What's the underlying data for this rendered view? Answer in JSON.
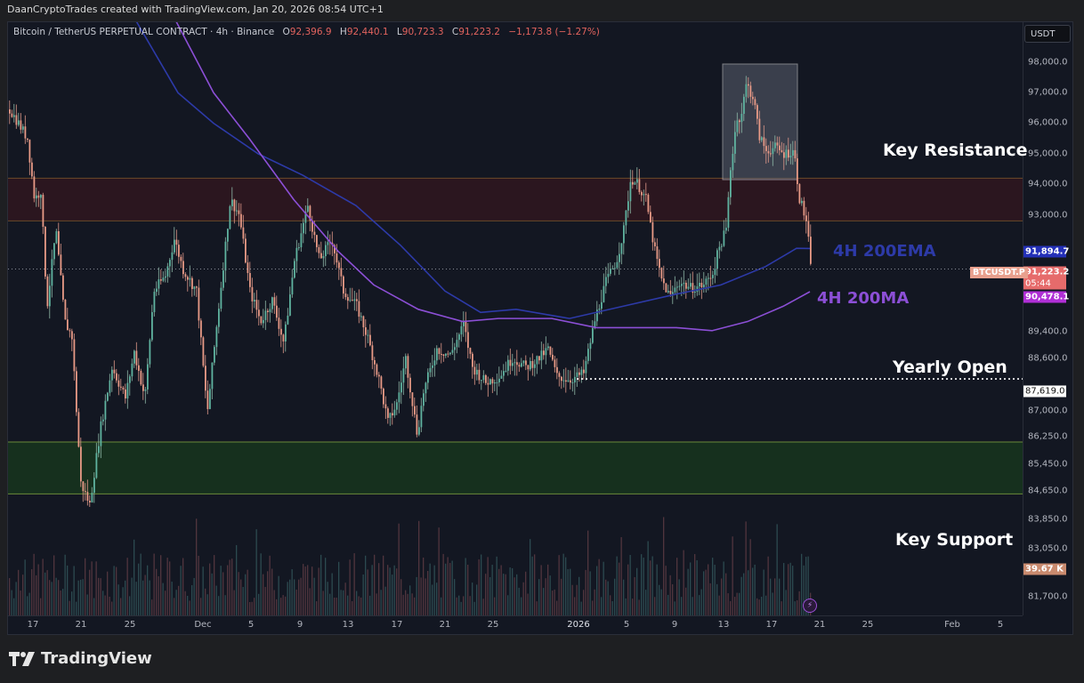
{
  "header": {
    "attribution": "DaanCryptoTrades created with TradingView.com, Jan 20, 2026 08:54 UTC+1"
  },
  "legend": {
    "symbol_desc": "Bitcoin / TetherUS PERPETUAL CONTRACT · 4h · Binance",
    "open_label": "O",
    "open": "92,396.9",
    "high_label": "H",
    "high": "92,440.1",
    "low_label": "L",
    "low": "90,723.3",
    "close_label": "C",
    "close": "91,223.2",
    "change": "−1,173.8 (−1.27%)"
  },
  "price_axis": {
    "currency": "USDT",
    "ticks": [
      "98,000.0",
      "97,000.0",
      "96,000.0",
      "95,000.0",
      "94,000.0",
      "93,000.0",
      "89,400.0",
      "88,600.0",
      "87,000.0",
      "86,250.0",
      "85,450.0",
      "84,650.0",
      "83,850.0",
      "83,050.0",
      "81,700.0"
    ]
  },
  "tags": {
    "ema": "91,894.7",
    "price": "91,223.2",
    "countdown": "05:44",
    "ma": "90,478.1",
    "yearly_open": "87,619.0",
    "volume": "39.67 K",
    "symbol": "BTCUSDT.P"
  },
  "time_axis": {
    "labels": [
      {
        "t": "17",
        "x": 37
      },
      {
        "t": "21",
        "x": 91
      },
      {
        "t": "25",
        "x": 146
      },
      {
        "t": "Dec",
        "x": 228
      },
      {
        "t": "5",
        "x": 282
      },
      {
        "t": "9",
        "x": 337
      },
      {
        "t": "13",
        "x": 391
      },
      {
        "t": "17",
        "x": 446
      },
      {
        "t": "21",
        "x": 500
      },
      {
        "t": "25",
        "x": 554
      },
      {
        "t": "2026",
        "x": 650
      },
      {
        "t": "5",
        "x": 704
      },
      {
        "t": "9",
        "x": 758
      },
      {
        "t": "13",
        "x": 813
      },
      {
        "t": "17",
        "x": 867
      },
      {
        "t": "21",
        "x": 921
      },
      {
        "t": "25",
        "x": 975
      },
      {
        "t": "Feb",
        "x": 1070
      },
      {
        "t": "5",
        "x": 1124
      }
    ]
  },
  "annotations": {
    "key_resistance": "Key Resistance",
    "ema_label": "4H 200EMA",
    "ma_label": "4H 200MA",
    "yearly_open": "Yearly Open",
    "key_support": "Key Support"
  },
  "branding": {
    "logo_text": "TradingView"
  },
  "colors": {
    "up": "#26a69a",
    "down": "#ef5350",
    "ema": "#2d3aa8",
    "ma": "#8c4fd6",
    "resistance_zone": "#3a1a22",
    "support_zone": "#16301c"
  },
  "chart_data": {
    "type": "candlestick",
    "title": "Bitcoin / TetherUS PERPETUAL CONTRACT · 4h · Binance",
    "xlabel": "",
    "ylabel": "USDT",
    "ylim": [
      81300,
      98800
    ],
    "x_ticks": [
      "17",
      "21",
      "25",
      "Dec",
      "5",
      "9",
      "13",
      "17",
      "21",
      "25",
      "2026",
      "5",
      "9",
      "13",
      "17",
      "21",
      "25",
      "Feb",
      "5"
    ],
    "approx_close_path": [
      {
        "date": "Nov 16",
        "price": 96500
      },
      {
        "date": "Nov 18",
        "price": 94000
      },
      {
        "date": "Nov 19",
        "price": 92500
      },
      {
        "date": "Nov 21",
        "price": 84000
      },
      {
        "date": "Nov 24",
        "price": 88500
      },
      {
        "date": "Nov 27",
        "price": 91000
      },
      {
        "date": "Dec 1",
        "price": 86500
      },
      {
        "date": "Dec 3",
        "price": 93500
      },
      {
        "date": "Dec 6",
        "price": 89500
      },
      {
        "date": "Dec 9",
        "price": 93000
      },
      {
        "date": "Dec 12",
        "price": 90200
      },
      {
        "date": "Dec 15",
        "price": 88500
      },
      {
        "date": "Dec 18",
        "price": 85600
      },
      {
        "date": "Dec 19",
        "price": 88000
      },
      {
        "date": "Dec 22",
        "price": 89500
      },
      {
        "date": "Dec 26",
        "price": 87500
      },
      {
        "date": "Dec 29",
        "price": 90000
      },
      {
        "date": "Jan 1",
        "price": 87619
      },
      {
        "date": "Jan 2",
        "price": 89500
      },
      {
        "date": "Jan 5",
        "price": 94500
      },
      {
        "date": "Jan 8",
        "price": 90500
      },
      {
        "date": "Jan 11",
        "price": 90800
      },
      {
        "date": "Jan 13",
        "price": 92000
      },
      {
        "date": "Jan 14",
        "price": 96000
      },
      {
        "date": "Jan 15",
        "price": 97200
      },
      {
        "date": "Jan 17",
        "price": 95000
      },
      {
        "date": "Jan 19",
        "price": 93000
      },
      {
        "date": "Jan 20",
        "price": 91223.2
      }
    ],
    "indicators": [
      {
        "name": "4H 200EMA",
        "last": 91894.7
      },
      {
        "name": "4H 200MA",
        "last": 90478.1
      }
    ],
    "levels": [
      {
        "name": "Key Resistance",
        "from": 92800,
        "to": 94200
      },
      {
        "name": "Yearly Open",
        "value": 87619.0
      },
      {
        "name": "Key Support",
        "from": 83850,
        "to": 85550
      }
    ],
    "last_volume": "39.67 K",
    "grid": false
  }
}
